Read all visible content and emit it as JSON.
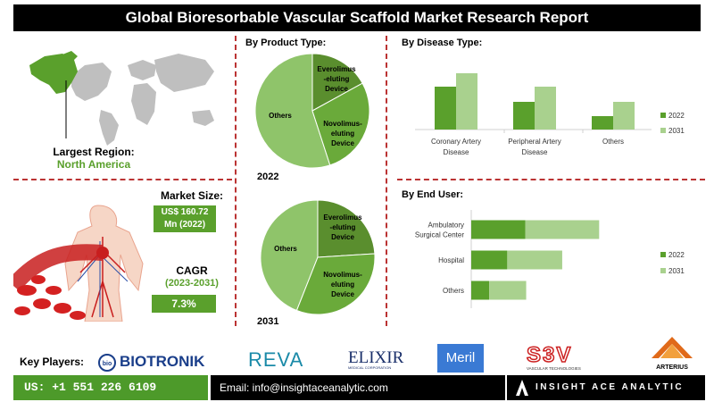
{
  "title": "Global Bioresorbable Vascular Scaffold Market Research Report",
  "region": {
    "label": "Largest Region:",
    "value": "North America"
  },
  "market_size": {
    "label": "Market Size:",
    "value_line1": "US$ 160.72",
    "value_line2": "Mn (2022)"
  },
  "cagr": {
    "label": "CAGR",
    "period": "(2023-2031)",
    "value": "7.3%"
  },
  "product_type": {
    "title": "By Product Type:",
    "pie_2022": {
      "year": "2022",
      "slices": [
        {
          "label": "Others",
          "value": 55,
          "color": "#8fc46a"
        },
        {
          "label_l1": "Everolimus",
          "label_l2": "-eluting",
          "label_l3": "Device",
          "value": 17,
          "color": "#5a8e2e"
        },
        {
          "label_l1": "Novolimus-",
          "label_l2": "eluting",
          "label_l3": "Device",
          "value": 28,
          "color": "#6aaa3a"
        }
      ]
    },
    "pie_2031": {
      "year": "2031",
      "slices": [
        {
          "label": "Others",
          "value": 44,
          "color": "#8fc46a"
        },
        {
          "label_l1": "Everolimus",
          "label_l2": "-eluting",
          "label_l3": "Device",
          "value": 24,
          "color": "#5a8e2e"
        },
        {
          "label_l1": "Novolimus-",
          "label_l2": "eluting",
          "label_l3": "Device",
          "value": 32,
          "color": "#6aaa3a"
        }
      ]
    }
  },
  "chart_data": [
    {
      "type": "bar",
      "title": "By Disease Type:",
      "categories": [
        "Coronary Artery Disease",
        "Peripheral Artery Disease",
        "Others"
      ],
      "category_lines": [
        [
          "Coronary Artery",
          "Disease"
        ],
        [
          "Peripheral Artery",
          "Disease"
        ],
        [
          "Others"
        ]
      ],
      "series": [
        {
          "name": "2022",
          "values": [
            48,
            31,
            15
          ],
          "color": "#5aa02c"
        },
        {
          "name": "2031",
          "values": [
            63,
            48,
            31
          ],
          "color": "#a9d18e"
        }
      ]
    },
    {
      "type": "bar",
      "orientation": "horizontal-stacked",
      "title": "By End User:",
      "categories": [
        "Ambulatory Surgical Center",
        "Hospital",
        "Others"
      ],
      "category_lines": [
        [
          "Ambulatory",
          "Surgical Center"
        ],
        [
          "Hospital"
        ],
        [
          "Others"
        ]
      ],
      "series": [
        {
          "name": "2022",
          "values": [
            60,
            40,
            20
          ],
          "color": "#5aa02c"
        },
        {
          "name": "2031",
          "values": [
            82,
            61,
            41
          ],
          "color": "#a9d18e"
        }
      ]
    }
  ],
  "key_players": {
    "label": "Key Players:",
    "logos": [
      "BIOTRONIK",
      "REVA",
      "ELIXIR",
      "Meril",
      "S3V",
      "ARTERIUS"
    ],
    "elixir_sub": "MEDICAL CORPORATION",
    "s3v_sub": "VASCULAR TECHNOLOGIES"
  },
  "footer": {
    "phone": "US: +1 551 226 6109",
    "email": "Email: info@insightaceanalytic.com",
    "brand": "INSIGHT ACE ANALYTIC"
  }
}
